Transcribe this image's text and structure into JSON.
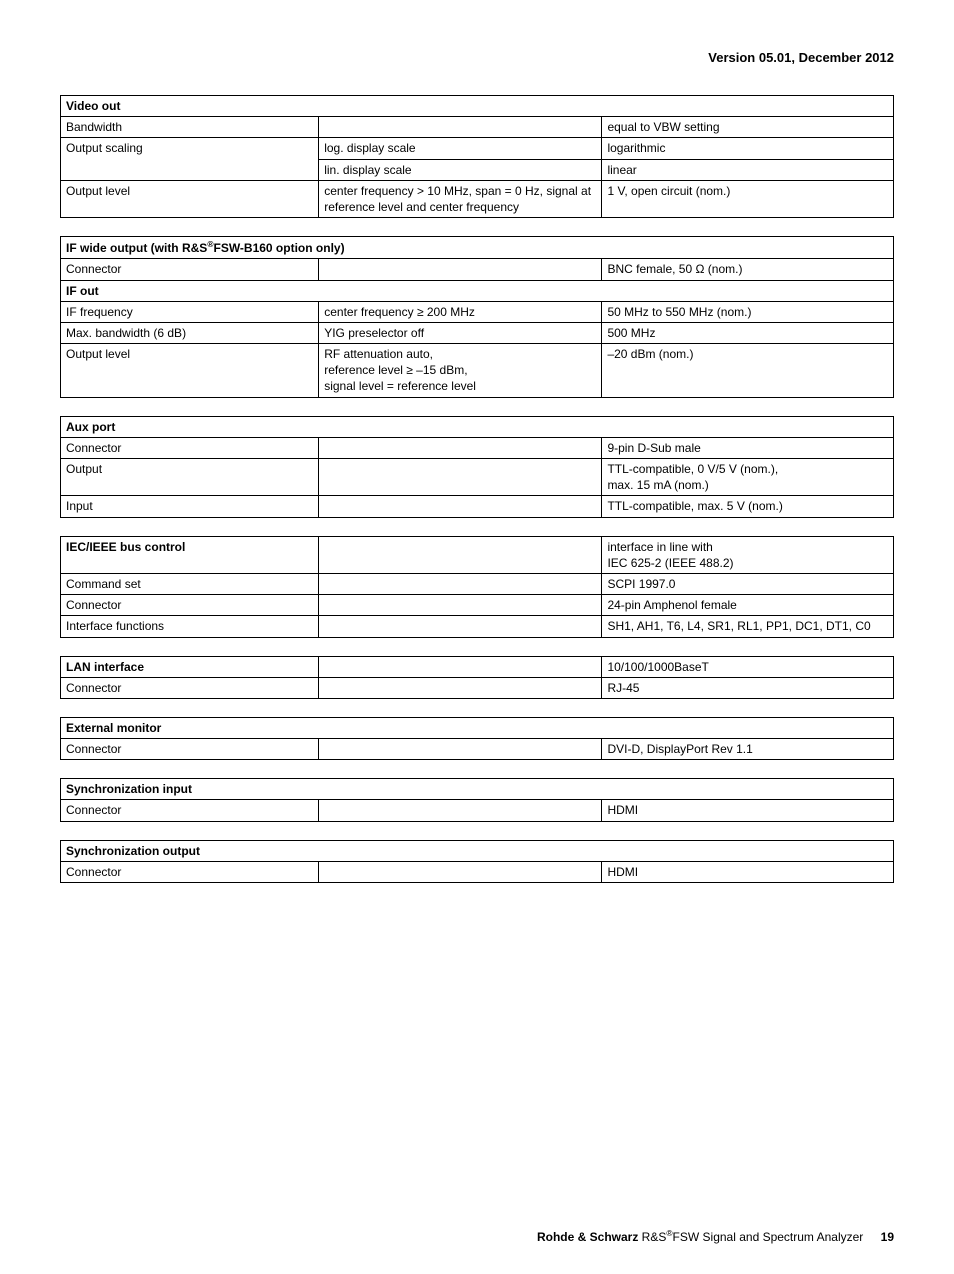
{
  "page_header": "Version 05.01, December 2012",
  "footer_brand": "Rohde & Schwarz",
  "footer_product": " R&S",
  "footer_product2": "FSW Signal and Spectrum Analyzer",
  "footer_page": "19",
  "video_out": {
    "title": "Video out",
    "rows": [
      {
        "c1": "Bandwidth",
        "c2": "",
        "c3": "equal to VBW setting"
      },
      {
        "c1": "Output scaling",
        "c2": "log. display scale",
        "c3": "logarithmic"
      },
      {
        "c1": "",
        "c2": "lin. display scale",
        "c3": "linear"
      },
      {
        "c1": "Output level",
        "c2": "center frequency > 10 MHz, span = 0 Hz, signal at reference level and center frequency",
        "c3": "1 V, open circuit (nom.)"
      }
    ]
  },
  "if_wide": {
    "title_pre": "IF wide output (with R&S",
    "title_post": "FSW-B160 option only)",
    "rows1": [
      {
        "c1": "Connector",
        "c2": "",
        "c3": "BNC female, 50 Ω (nom.)"
      }
    ],
    "subheader": "IF out",
    "rows2": [
      {
        "c1": "IF frequency",
        "c2": "center frequency ≥ 200 MHz",
        "c3": "50 MHz to 550 MHz (nom.)"
      },
      {
        "c1": "Max. bandwidth (6 dB)",
        "c2": "YIG preselector off",
        "c3": "500 MHz"
      },
      {
        "c1": "Output level",
        "c2": "RF attenuation auto,\nreference level ≥ –15 dBm,\nsignal level = reference level",
        "c3": "–20 dBm (nom.)"
      }
    ]
  },
  "aux_port": {
    "title": "Aux port",
    "rows": [
      {
        "c1": "Connector",
        "c2": "",
        "c3": "9-pin D-Sub male"
      },
      {
        "c1": "Output",
        "c2": "",
        "c3": "TTL-compatible, 0 V/5 V (nom.),\nmax. 15 mA (nom.)"
      },
      {
        "c1": "Input",
        "c2": "",
        "c3": "TTL-compatible, max. 5 V (nom.)"
      }
    ]
  },
  "iec": {
    "rows": [
      {
        "c1": "IEC/IEEE bus control",
        "c1bold": true,
        "c2": "",
        "c3": "interface in line with\nIEC 625-2 (IEEE 488.2)"
      },
      {
        "c1": "Command set",
        "c2": "",
        "c3": "SCPI 1997.0"
      },
      {
        "c1": "Connector",
        "c2": "",
        "c3": "24-pin Amphenol female"
      },
      {
        "c1": "Interface functions",
        "c2": "",
        "c3": "SH1, AH1, T6, L4, SR1, RL1, PP1, DC1, DT1, C0"
      }
    ]
  },
  "lan": {
    "rows": [
      {
        "c1": "LAN interface",
        "c1bold": true,
        "c2": "",
        "c3": "10/100/1000BaseT"
      },
      {
        "c1": "Connector",
        "c2": "",
        "c3": "RJ-45"
      }
    ]
  },
  "ext_monitor": {
    "title": "External monitor",
    "rows": [
      {
        "c1": "Connector",
        "c2": "",
        "c3": "DVI-D, DisplayPort Rev 1.1"
      }
    ]
  },
  "sync_in": {
    "title": "Synchronization input",
    "rows": [
      {
        "c1": "Connector",
        "c2": "",
        "c3": "HDMI"
      }
    ]
  },
  "sync_out": {
    "title": "Synchronization output",
    "rows": [
      {
        "c1": "Connector",
        "c2": "",
        "c3": "HDMI"
      }
    ]
  }
}
